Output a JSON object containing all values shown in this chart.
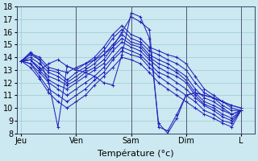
{
  "xlabel": "Température (°c)",
  "background_color": "#cce8f0",
  "grid_color": "#99ccd9",
  "line_color": "#2222bb",
  "ylim": [
    8,
    18
  ],
  "yticks": [
    8,
    9,
    10,
    11,
    12,
    13,
    14,
    15,
    16,
    17,
    18
  ],
  "day_labels": [
    "Jeu",
    "Ven",
    "Sam",
    "Dim",
    "L"
  ],
  "day_positions": [
    0,
    24,
    48,
    72,
    96
  ],
  "xlim": [
    -2,
    102
  ],
  "series": [
    [
      0,
      13.7,
      14.4,
      13.8,
      12.0,
      8.5,
      13.3,
      13.0,
      12.8,
      12.5,
      12.0,
      11.8,
      14.2,
      17.5,
      17.2,
      15.5,
      8.8,
      8.0,
      9.2,
      11.0,
      11.2,
      11.0,
      10.8,
      10.5,
      10.2,
      10.0
    ],
    [
      0,
      13.7,
      13.8,
      13.0,
      13.5,
      13.8,
      13.3,
      13.0,
      13.5,
      13.8,
      14.2,
      14.8,
      16.0,
      17.2,
      16.8,
      16.2,
      8.5,
      8.2,
      9.5,
      11.0,
      11.2,
      11.0,
      10.8,
      10.5,
      10.2,
      10.0
    ],
    [
      0,
      13.7,
      14.3,
      14.0,
      13.2,
      13.0,
      12.8,
      13.2,
      13.5,
      14.0,
      14.8,
      15.8,
      16.5,
      15.8,
      15.5,
      14.8,
      14.5,
      14.2,
      14.0,
      13.5,
      12.5,
      11.5,
      11.0,
      10.5,
      10.0,
      9.8
    ],
    [
      0,
      13.7,
      14.2,
      13.8,
      13.0,
      12.8,
      12.2,
      12.8,
      13.2,
      13.8,
      14.5,
      15.5,
      16.2,
      15.5,
      15.2,
      14.5,
      14.2,
      13.8,
      13.5,
      13.0,
      12.0,
      11.2,
      10.8,
      10.2,
      9.8,
      9.8
    ],
    [
      0,
      13.7,
      14.0,
      13.5,
      12.8,
      12.5,
      12.0,
      12.5,
      13.0,
      13.5,
      14.2,
      15.0,
      15.8,
      15.2,
      15.0,
      14.2,
      13.8,
      13.5,
      13.0,
      12.5,
      11.5,
      10.8,
      10.5,
      10.0,
      9.5,
      9.8
    ],
    [
      0,
      13.7,
      13.8,
      13.2,
      12.5,
      12.2,
      11.8,
      12.2,
      12.8,
      13.2,
      13.8,
      14.8,
      15.5,
      15.0,
      14.8,
      14.0,
      13.5,
      13.2,
      12.8,
      12.2,
      11.2,
      10.5,
      10.2,
      9.8,
      9.5,
      9.8
    ],
    [
      0,
      13.7,
      13.8,
      13.0,
      12.2,
      11.8,
      11.5,
      12.0,
      12.5,
      13.0,
      13.5,
      14.5,
      15.2,
      14.8,
      14.5,
      13.8,
      13.2,
      12.8,
      12.5,
      12.0,
      11.0,
      10.3,
      10.0,
      9.5,
      9.2,
      9.8
    ],
    [
      0,
      13.7,
      13.5,
      12.8,
      12.0,
      11.5,
      11.0,
      11.5,
      12.0,
      12.5,
      13.2,
      14.0,
      14.8,
      14.5,
      14.2,
      13.5,
      12.8,
      12.5,
      12.0,
      11.5,
      10.8,
      10.2,
      9.8,
      9.3,
      9.0,
      9.8
    ],
    [
      0,
      13.7,
      13.5,
      12.5,
      11.5,
      11.0,
      10.5,
      11.0,
      11.5,
      12.2,
      12.8,
      13.8,
      14.5,
      14.2,
      14.0,
      13.2,
      12.5,
      12.0,
      11.5,
      11.0,
      10.5,
      9.8,
      9.5,
      9.0,
      8.8,
      9.8
    ],
    [
      0,
      13.7,
      13.2,
      12.3,
      11.2,
      10.5,
      10.0,
      10.5,
      11.0,
      11.8,
      12.5,
      13.2,
      14.0,
      13.8,
      13.5,
      12.8,
      12.0,
      11.5,
      11.0,
      10.5,
      10.0,
      9.5,
      9.2,
      8.8,
      8.5,
      9.8
    ]
  ],
  "xtick_fontsize": 7,
  "ytick_fontsize": 7,
  "xlabel_fontsize": 8
}
